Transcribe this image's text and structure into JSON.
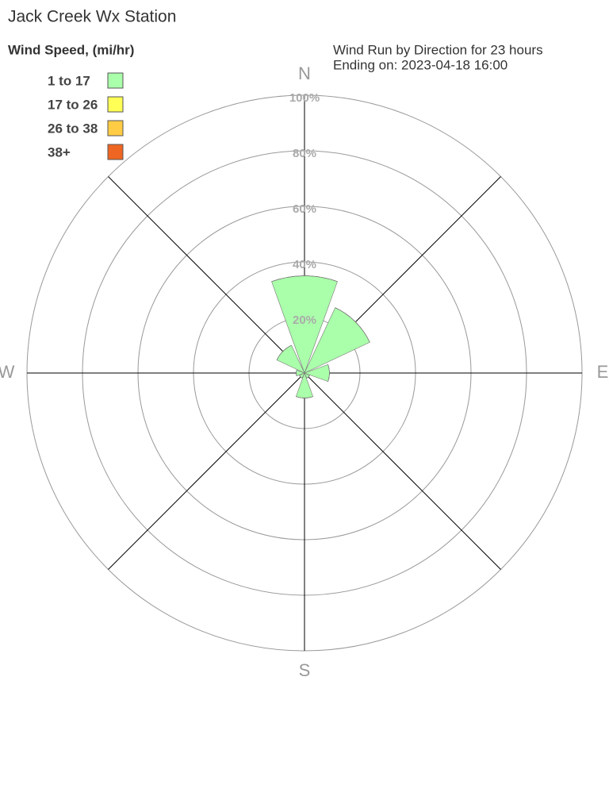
{
  "chart_data": {
    "type": "windrose",
    "title": "Jack Creek Wx Station",
    "legend_title": "Wind Speed, (mi/hr)",
    "subtitle": [
      "Wind Run by Direction for 23 hours",
      "Ending on: 2023-04-18 16:00"
    ],
    "categories": [
      "N",
      null,
      "E",
      null,
      "S",
      null,
      "W",
      null
    ],
    "series": [
      {
        "name": "1 to 17",
        "color": "#aaffaa",
        "values": [
          35,
          26,
          9,
          2,
          9,
          2,
          3,
          11
        ]
      },
      {
        "name": "17 to 26",
        "color": "#ffff55",
        "values": [
          0,
          0,
          0,
          0,
          0,
          0,
          0,
          0
        ]
      },
      {
        "name": "26 to 38",
        "color": "#ffcc44",
        "values": [
          0,
          0,
          0,
          0,
          0,
          0,
          0,
          0
        ]
      },
      {
        "name": "38+",
        "color": "#ee6622",
        "values": [
          0,
          0,
          0,
          0,
          0,
          0,
          0,
          0
        ]
      }
    ],
    "rlim": [
      0,
      100
    ],
    "rticks": [
      {
        "value": 20,
        "label": "20%"
      },
      {
        "value": 40,
        "label": "40%"
      },
      {
        "value": 60,
        "label": "60%"
      },
      {
        "value": 80,
        "label": "80%"
      },
      {
        "value": 100,
        "label": "100%"
      }
    ]
  }
}
